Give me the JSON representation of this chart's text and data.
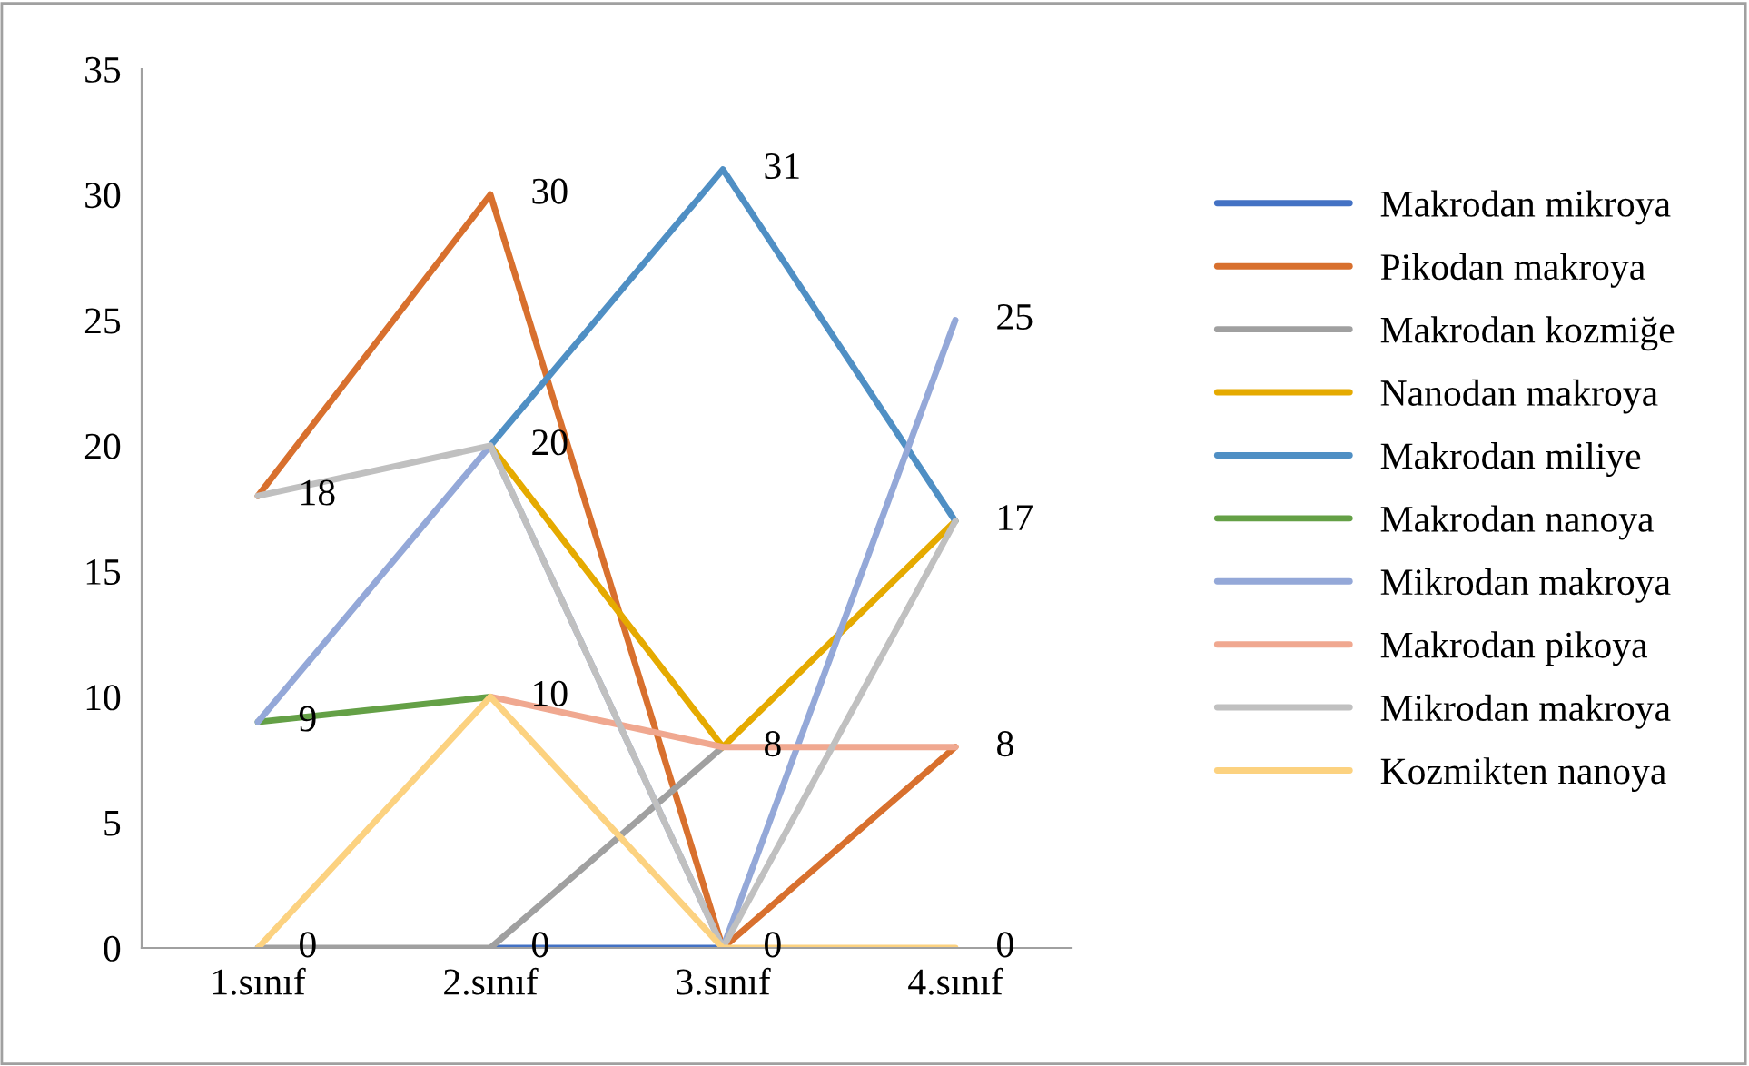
{
  "chart_data": {
    "type": "line",
    "categories": [
      "1.sınıf",
      "2.sınıf",
      "3.sınıf",
      "4.sınıf"
    ],
    "ylim": [
      0,
      35
    ],
    "yticks": [
      0,
      5,
      10,
      15,
      20,
      25,
      30,
      35
    ],
    "grid": false,
    "legend": "right",
    "marker": "none",
    "line_style": "solid",
    "series": [
      {
        "name": "Makrodan mikroya",
        "color": "#4472c4",
        "values": [
          null,
          0,
          0,
          null
        ],
        "value_labels": [
          null,
          null,
          null,
          null
        ]
      },
      {
        "name": "Pikodan makroya",
        "color": "#d8702e",
        "values": [
          18,
          30,
          0,
          8
        ],
        "value_labels": [
          null,
          "30",
          null,
          null
        ]
      },
      {
        "name": "Makrodan kozmiğe",
        "color": "#a0a0a0",
        "values": [
          0,
          0,
          8,
          null
        ],
        "value_labels": [
          null,
          "0",
          null,
          null
        ]
      },
      {
        "name": "Nanodan makroya",
        "color": "#e5aa00",
        "values": [
          null,
          20,
          8,
          17
        ],
        "value_labels": [
          null,
          null,
          null,
          null
        ]
      },
      {
        "name": "Makrodan miliye",
        "color": "#4f8fc4",
        "values": [
          null,
          20,
          31,
          17
        ],
        "value_labels": [
          null,
          null,
          "31",
          null
        ]
      },
      {
        "name": "Makrodan nanoya",
        "color": "#64a046",
        "values": [
          9,
          10,
          null,
          null
        ],
        "value_labels": [
          null,
          null,
          null,
          null
        ]
      },
      {
        "name": "Mikrodan makroya",
        "color": "#94a8d8",
        "values": [
          9,
          20,
          0,
          25
        ],
        "value_labels": [
          "9",
          null,
          null,
          "25"
        ]
      },
      {
        "name": "Makrodan pikoya",
        "color": "#f0a890",
        "values": [
          null,
          10,
          8,
          8
        ],
        "value_labels": [
          null,
          null,
          "8",
          "8"
        ]
      },
      {
        "name": "Mikrodan makroya",
        "color": "#c0c0c0",
        "values": [
          18,
          20,
          0,
          17
        ],
        "value_labels": [
          "18",
          "20",
          null,
          "17"
        ]
      },
      {
        "name": "Kozmikten nanoya",
        "color": "#fcd280",
        "values": [
          0,
          10,
          0,
          0
        ],
        "value_labels": [
          "0",
          "10",
          "0",
          "0"
        ]
      }
    ]
  }
}
